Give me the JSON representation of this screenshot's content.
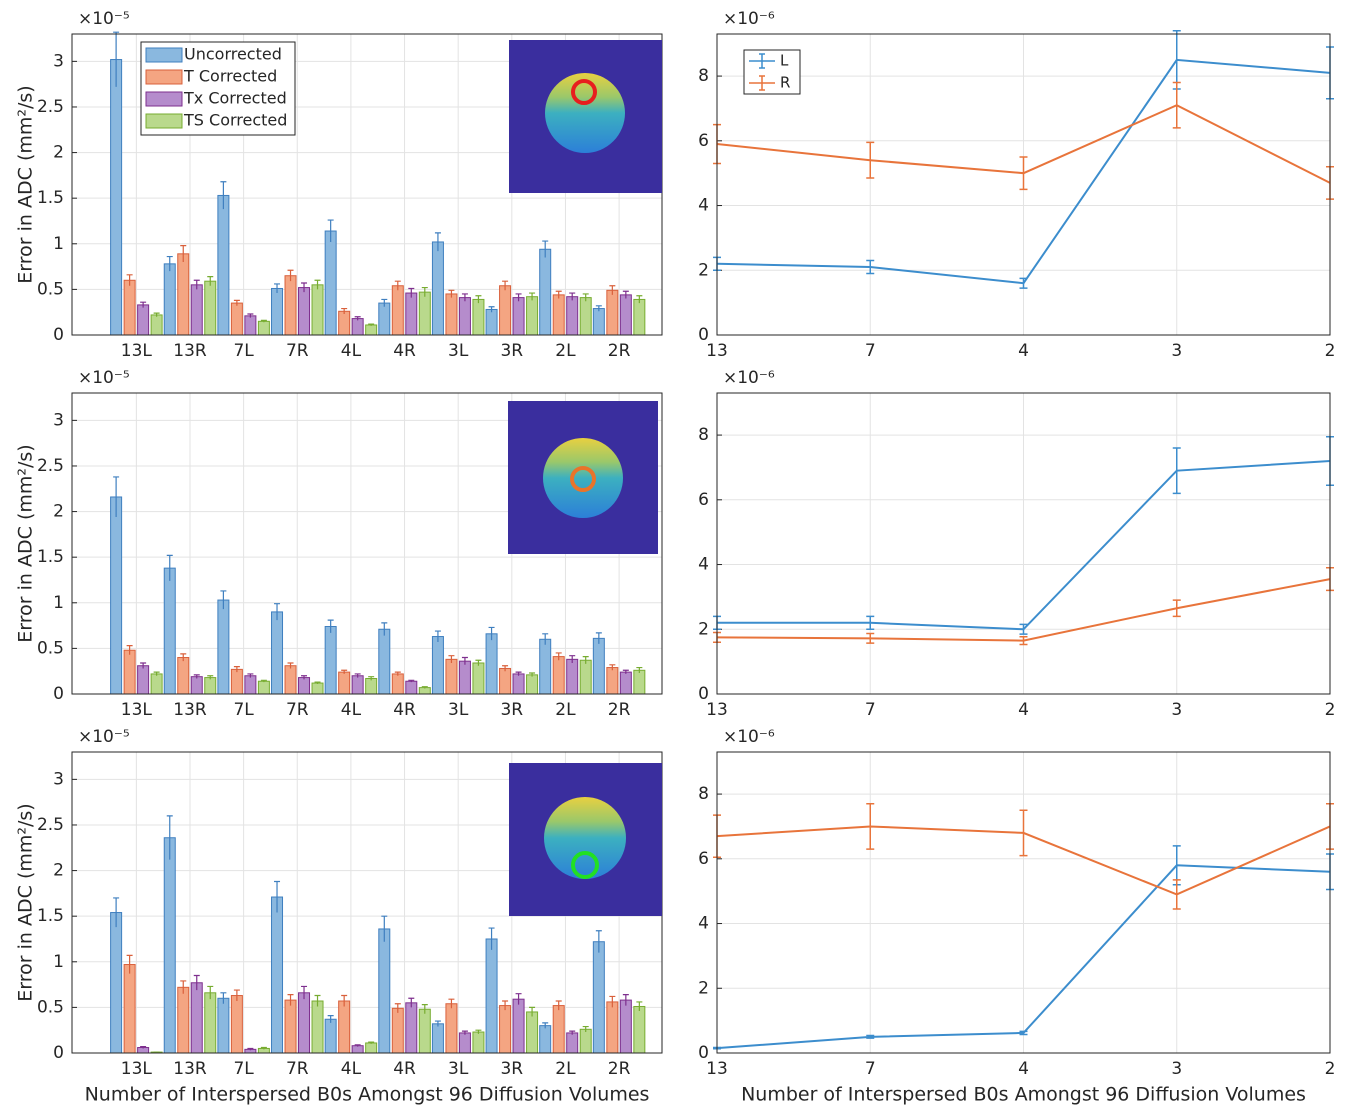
{
  "chart_data": [
    {
      "type": "bar",
      "ylabel": "Error in ADC (mm²/s)",
      "y_exponent_label": "×10⁻⁵",
      "categories": [
        "13L",
        "13R",
        "7L",
        "7R",
        "4L",
        "4R",
        "3L",
        "3R",
        "2L",
        "2R"
      ],
      "ylim": [
        0,
        3.3
      ],
      "yticks": [
        0,
        0.5,
        1,
        1.5,
        2,
        2.5,
        3
      ],
      "grid": true,
      "legend": "upper left",
      "series": [
        {
          "name": "Uncorrected",
          "color": "#8ab8df",
          "edge_color": "#3f7fbf",
          "values": [
            3.02,
            0.78,
            1.53,
            0.51,
            1.14,
            0.35,
            1.02,
            0.28,
            0.94,
            0.29
          ],
          "errors": [
            0.3,
            0.08,
            0.15,
            0.05,
            0.12,
            0.04,
            0.1,
            0.03,
            0.09,
            0.03
          ]
        },
        {
          "name": "T Corrected",
          "color": "#f4a582",
          "edge_color": "#d9603b",
          "values": [
            0.6,
            0.89,
            0.35,
            0.65,
            0.26,
            0.54,
            0.45,
            0.54,
            0.44,
            0.49
          ],
          "errors": [
            0.06,
            0.09,
            0.03,
            0.06,
            0.03,
            0.05,
            0.04,
            0.05,
            0.04,
            0.05
          ]
        },
        {
          "name": "Tx Corrected",
          "color": "#b58ccc",
          "edge_color": "#7e2f8e",
          "values": [
            0.33,
            0.55,
            0.21,
            0.52,
            0.18,
            0.46,
            0.41,
            0.41,
            0.42,
            0.44
          ],
          "errors": [
            0.03,
            0.05,
            0.02,
            0.05,
            0.02,
            0.05,
            0.04,
            0.04,
            0.04,
            0.04
          ]
        },
        {
          "name": "TS Corrected",
          "color": "#b9d98c",
          "edge_color": "#77ac30",
          "values": [
            0.22,
            0.59,
            0.15,
            0.55,
            0.11,
            0.47,
            0.39,
            0.42,
            0.41,
            0.39
          ],
          "errors": [
            0.02,
            0.05,
            0.01,
            0.05,
            0.01,
            0.05,
            0.04,
            0.04,
            0.04,
            0.04
          ]
        }
      ]
    },
    {
      "type": "line",
      "y_exponent_label": "×10⁻⁶",
      "categories": [
        "13",
        "7",
        "4",
        "3",
        "2"
      ],
      "ylim": [
        0,
        9.3
      ],
      "yticks": [
        0,
        2,
        4,
        6,
        8
      ],
      "grid": true,
      "legend": "upper left",
      "series": [
        {
          "name": "L",
          "color": "#3c8dcd",
          "values": [
            2.2,
            2.1,
            1.6,
            8.5,
            8.1
          ],
          "errors": [
            0.2,
            0.2,
            0.15,
            0.9,
            0.8
          ]
        },
        {
          "name": "R",
          "color": "#e8743b",
          "values": [
            5.9,
            5.4,
            5.0,
            7.1,
            4.7
          ],
          "errors": [
            0.6,
            0.55,
            0.5,
            0.7,
            0.5
          ]
        }
      ]
    },
    {
      "type": "bar",
      "ylabel": "Error in ADC (mm²/s)",
      "y_exponent_label": "×10⁻⁵",
      "categories": [
        "13L",
        "13R",
        "7L",
        "7R",
        "4L",
        "4R",
        "3L",
        "3R",
        "2L",
        "2R"
      ],
      "ylim": [
        0,
        3.3
      ],
      "yticks": [
        0,
        0.5,
        1,
        1.5,
        2,
        2.5,
        3
      ],
      "grid": true,
      "series": [
        {
          "color": "#8ab8df",
          "edge_color": "#3f7fbf",
          "values": [
            2.16,
            1.38,
            1.03,
            0.9,
            0.74,
            0.71,
            0.63,
            0.66,
            0.6,
            0.61
          ],
          "errors": [
            0.22,
            0.14,
            0.1,
            0.09,
            0.07,
            0.07,
            0.06,
            0.07,
            0.06,
            0.06
          ]
        },
        {
          "color": "#f4a582",
          "edge_color": "#d9603b",
          "values": [
            0.48,
            0.4,
            0.27,
            0.31,
            0.24,
            0.22,
            0.38,
            0.28,
            0.41,
            0.29
          ],
          "errors": [
            0.05,
            0.04,
            0.03,
            0.03,
            0.02,
            0.02,
            0.04,
            0.03,
            0.04,
            0.03
          ]
        },
        {
          "color": "#b58ccc",
          "edge_color": "#7e2f8e",
          "values": [
            0.31,
            0.19,
            0.2,
            0.18,
            0.2,
            0.14,
            0.36,
            0.22,
            0.38,
            0.24
          ],
          "errors": [
            0.03,
            0.02,
            0.02,
            0.02,
            0.02,
            0.01,
            0.04,
            0.02,
            0.04,
            0.02
          ]
        },
        {
          "color": "#b9d98c",
          "edge_color": "#77ac30",
          "values": [
            0.22,
            0.18,
            0.14,
            0.12,
            0.17,
            0.07,
            0.34,
            0.21,
            0.37,
            0.26
          ],
          "errors": [
            0.02,
            0.02,
            0.01,
            0.01,
            0.02,
            0.01,
            0.03,
            0.02,
            0.04,
            0.03
          ]
        }
      ]
    },
    {
      "type": "line",
      "y_exponent_label": "×10⁻⁶",
      "categories": [
        "13",
        "7",
        "4",
        "3",
        "2"
      ],
      "ylim": [
        0,
        9.3
      ],
      "yticks": [
        0,
        2,
        4,
        6,
        8
      ],
      "grid": true,
      "series": [
        {
          "color": "#3c8dcd",
          "values": [
            2.2,
            2.2,
            2.0,
            6.9,
            7.2
          ],
          "errors": [
            0.2,
            0.2,
            0.15,
            0.7,
            0.75
          ]
        },
        {
          "color": "#e8743b",
          "values": [
            1.75,
            1.72,
            1.65,
            2.65,
            3.55
          ],
          "errors": [
            0.15,
            0.15,
            0.12,
            0.25,
            0.35
          ]
        }
      ]
    },
    {
      "type": "bar",
      "ylabel": "Error in ADC (mm²/s)",
      "y_exponent_label": "×10⁻⁵",
      "xlabel": "Number of Interspersed B0s Amongst 96 Diffusion Volumes",
      "categories": [
        "13L",
        "13R",
        "7L",
        "7R",
        "4L",
        "4R",
        "3L",
        "3R",
        "2L",
        "2R"
      ],
      "ylim": [
        0,
        3.3
      ],
      "yticks": [
        0,
        0.5,
        1,
        1.5,
        2,
        2.5,
        3
      ],
      "grid": true,
      "series": [
        {
          "color": "#8ab8df",
          "edge_color": "#3f7fbf",
          "values": [
            1.54,
            2.36,
            0.6,
            1.71,
            0.37,
            1.36,
            0.32,
            1.25,
            0.3,
            1.22
          ],
          "errors": [
            0.16,
            0.24,
            0.06,
            0.17,
            0.04,
            0.14,
            0.03,
            0.12,
            0.03,
            0.12
          ]
        },
        {
          "color": "#f4a582",
          "edge_color": "#d9603b",
          "values": [
            0.97,
            0.72,
            0.63,
            0.58,
            0.57,
            0.49,
            0.54,
            0.52,
            0.52,
            0.56
          ],
          "errors": [
            0.1,
            0.07,
            0.06,
            0.06,
            0.06,
            0.05,
            0.05,
            0.05,
            0.05,
            0.06
          ]
        },
        {
          "color": "#b58ccc",
          "edge_color": "#7e2f8e",
          "values": [
            0.06,
            0.77,
            0.04,
            0.66,
            0.08,
            0.55,
            0.22,
            0.59,
            0.22,
            0.58
          ],
          "errors": [
            0.01,
            0.08,
            0.01,
            0.07,
            0.01,
            0.05,
            0.02,
            0.06,
            0.02,
            0.06
          ]
        },
        {
          "color": "#b9d98c",
          "edge_color": "#77ac30",
          "values": [
            0.01,
            0.66,
            0.05,
            0.57,
            0.11,
            0.48,
            0.23,
            0.45,
            0.26,
            0.51
          ],
          "errors": [
            0,
            0.07,
            0.01,
            0.06,
            0.01,
            0.05,
            0.02,
            0.05,
            0.03,
            0.05
          ]
        }
      ]
    },
    {
      "type": "line",
      "y_exponent_label": "×10⁻⁶",
      "xlabel": "Number of Interspersed B0s Amongst 96 Diffusion Volumes",
      "categories": [
        "13",
        "7",
        "4",
        "3",
        "2"
      ],
      "ylim": [
        0,
        9.3
      ],
      "yticks": [
        0,
        2,
        4,
        6,
        8
      ],
      "grid": true,
      "series": [
        {
          "color": "#3c8dcd",
          "values": [
            0.15,
            0.5,
            0.62,
            5.8,
            5.6
          ],
          "errors": [
            0.02,
            0.04,
            0.05,
            0.6,
            0.55
          ]
        },
        {
          "color": "#e8743b",
          "values": [
            6.7,
            7.0,
            6.8,
            4.9,
            7.0
          ],
          "errors": [
            0.65,
            0.7,
            0.7,
            0.45,
            0.7
          ]
        }
      ]
    }
  ]
}
